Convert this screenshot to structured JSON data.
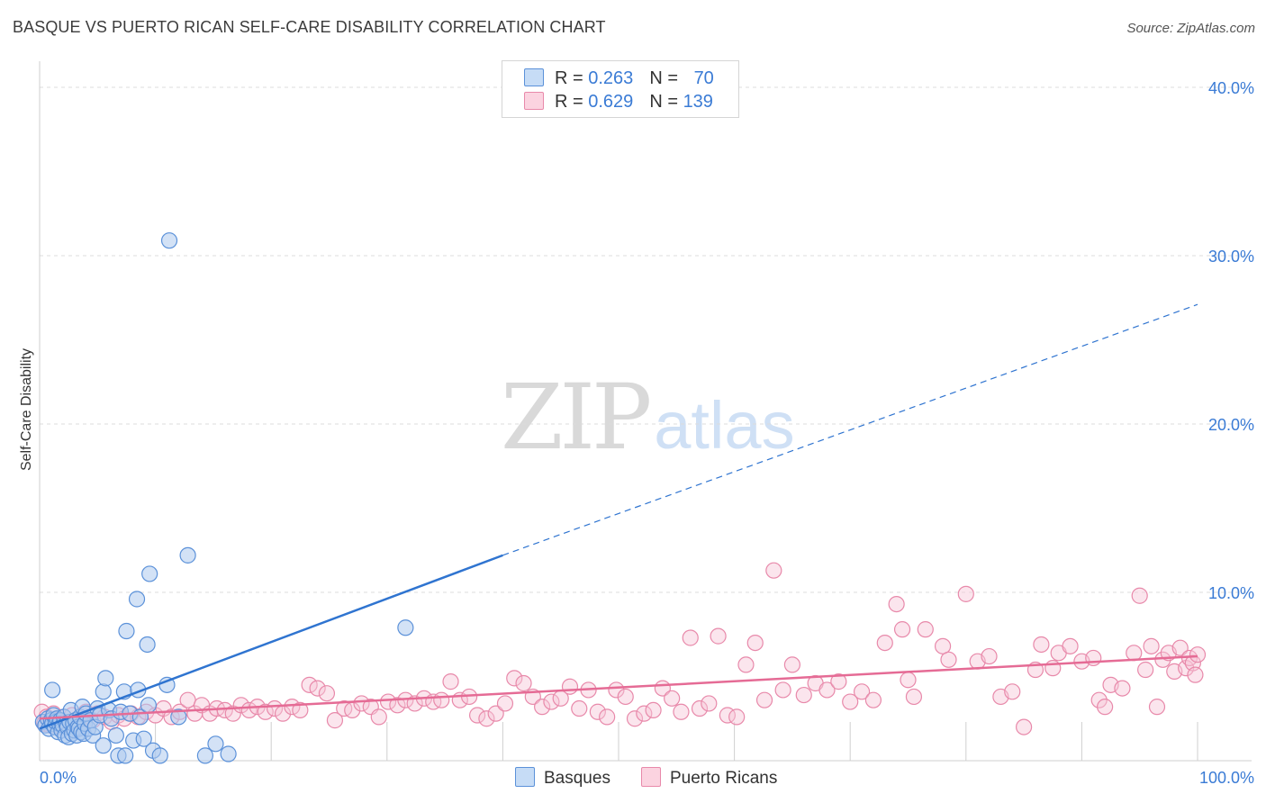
{
  "title": "BASQUE VS PUERTO RICAN SELF-CARE DISABILITY CORRELATION CHART",
  "source": "Source: ZipAtlas.com",
  "watermark": {
    "zip": "ZIP",
    "atlas": "atlas"
  },
  "legend": {
    "rows": [
      {
        "r_label": "R = ",
        "r_value": "0.263",
        "n_label": "N = ",
        "n_value": "70"
      },
      {
        "r_label": "R = ",
        "r_value": "0.629",
        "n_label": "N = ",
        "n_value": "139"
      }
    ]
  },
  "bottom_legend": {
    "basques": "Basques",
    "puerto_ricans": "Puerto Ricans"
  },
  "colors": {
    "basque_fill": "#aecbef",
    "basque_stroke": "#5b91d9",
    "basque_line": "#2f74d0",
    "pr_fill": "#f7c6d6",
    "pr_stroke": "#e889aa",
    "pr_line": "#e56b95",
    "tick_label": "#3a7bd5",
    "grid": "#dcdcdc"
  },
  "chart_data": {
    "type": "scatter",
    "title": "BASQUE VS PUERTO RICAN SELF-CARE DISABILITY CORRELATION CHART",
    "xlabel": "",
    "ylabel": "Self-Care Disability",
    "xlim": [
      0,
      100
    ],
    "ylim": [
      0,
      40
    ],
    "x_tick_labels": [
      "0.0%",
      "100.0%"
    ],
    "y_ticks": [
      10,
      20,
      30,
      40
    ],
    "y_tick_labels": [
      "10.0%",
      "20.0%",
      "30.0%",
      "40.0%"
    ],
    "series": [
      {
        "name": "Basques",
        "R": 0.263,
        "N": 70,
        "trend": {
          "x0": 0,
          "y0": 1.9,
          "x1": 40,
          "y1": 12.2,
          "dash_to_x": 100,
          "dash_to_y": 27.1
        },
        "points": [
          [
            0.3,
            2.3
          ],
          [
            0.5,
            2.1
          ],
          [
            0.7,
            2.5
          ],
          [
            0.8,
            1.9
          ],
          [
            1.0,
            2.4
          ],
          [
            1.1,
            2.2
          ],
          [
            1.2,
            2.7
          ],
          [
            1.3,
            2.0
          ],
          [
            1.4,
            2.3
          ],
          [
            1.5,
            2.5
          ],
          [
            1.6,
            1.7
          ],
          [
            1.7,
            2.2
          ],
          [
            1.8,
            2.4
          ],
          [
            1.9,
            1.8
          ],
          [
            2.0,
            2.1
          ],
          [
            2.1,
            2.6
          ],
          [
            2.2,
            1.5
          ],
          [
            2.3,
            2.2
          ],
          [
            2.4,
            2.0
          ],
          [
            2.5,
            1.4
          ],
          [
            2.6,
            2.3
          ],
          [
            2.7,
            3.0
          ],
          [
            2.8,
            1.6
          ],
          [
            2.9,
            2.2
          ],
          [
            3.0,
            1.8
          ],
          [
            3.1,
            2.4
          ],
          [
            3.2,
            1.5
          ],
          [
            3.3,
            2.0
          ],
          [
            3.4,
            1.9
          ],
          [
            3.5,
            2.6
          ],
          [
            3.6,
            1.7
          ],
          [
            3.7,
            3.2
          ],
          [
            3.8,
            1.6
          ],
          [
            3.9,
            2.2
          ],
          [
            4.0,
            2.8
          ],
          [
            4.2,
            1.9
          ],
          [
            4.4,
            2.4
          ],
          [
            4.6,
            1.5
          ],
          [
            4.8,
            2.0
          ],
          [
            5.0,
            3.1
          ],
          [
            5.2,
            2.7
          ],
          [
            5.5,
            4.1
          ],
          [
            5.7,
            4.9
          ],
          [
            6.0,
            3.0
          ],
          [
            6.2,
            2.5
          ],
          [
            6.6,
            1.5
          ],
          [
            7.0,
            2.9
          ],
          [
            7.3,
            4.1
          ],
          [
            7.8,
            2.8
          ],
          [
            8.1,
            1.2
          ],
          [
            8.5,
            4.2
          ],
          [
            8.7,
            2.6
          ],
          [
            9.0,
            1.3
          ],
          [
            9.4,
            3.3
          ],
          [
            5.5,
            0.9
          ],
          [
            6.8,
            0.3
          ],
          [
            7.4,
            0.3
          ],
          [
            9.8,
            0.6
          ],
          [
            10.4,
            0.3
          ],
          [
            11.0,
            4.5
          ],
          [
            12.0,
            2.6
          ],
          [
            14.3,
            0.3
          ],
          [
            15.2,
            1.0
          ],
          [
            16.3,
            0.4
          ],
          [
            9.3,
            6.9
          ],
          [
            9.5,
            11.1
          ],
          [
            7.5,
            7.7
          ],
          [
            8.4,
            9.6
          ],
          [
            12.8,
            12.2
          ],
          [
            11.2,
            30.9
          ],
          [
            31.6,
            7.9
          ],
          [
            1.1,
            4.2
          ]
        ]
      },
      {
        "name": "Puerto Ricans",
        "R": 0.629,
        "N": 139,
        "trend": {
          "x0": 0,
          "y0": 2.5,
          "x1": 100,
          "y1": 6.2
        },
        "points": [
          [
            0.2,
            2.9
          ],
          [
            0.4,
            2.2
          ],
          [
            0.6,
            2.6
          ],
          [
            0.9,
            2.1
          ],
          [
            1.2,
            2.8
          ],
          [
            1.5,
            2.4
          ],
          [
            1.8,
            2.0
          ],
          [
            2.1,
            2.6
          ],
          [
            2.4,
            2.3
          ],
          [
            2.8,
            2.7
          ],
          [
            3.2,
            2.1
          ],
          [
            3.6,
            2.5
          ],
          [
            4.0,
            2.9
          ],
          [
            4.6,
            2.4
          ],
          [
            5.0,
            2.8
          ],
          [
            5.6,
            2.6
          ],
          [
            6.2,
            2.3
          ],
          [
            6.8,
            2.7
          ],
          [
            7.3,
            2.5
          ],
          [
            7.9,
            2.8
          ],
          [
            8.5,
            2.6
          ],
          [
            9.2,
            2.9
          ],
          [
            10.0,
            2.7
          ],
          [
            10.7,
            3.1
          ],
          [
            11.4,
            2.6
          ],
          [
            12.1,
            2.9
          ],
          [
            12.8,
            3.6
          ],
          [
            13.4,
            2.8
          ],
          [
            14.0,
            3.3
          ],
          [
            14.7,
            2.8
          ],
          [
            15.3,
            3.1
          ],
          [
            16.0,
            3.0
          ],
          [
            16.7,
            2.8
          ],
          [
            17.4,
            3.3
          ],
          [
            18.1,
            3.0
          ],
          [
            18.8,
            3.2
          ],
          [
            19.5,
            2.9
          ],
          [
            20.3,
            3.1
          ],
          [
            21.0,
            2.8
          ],
          [
            21.8,
            3.2
          ],
          [
            22.5,
            3.0
          ],
          [
            23.3,
            4.5
          ],
          [
            24.0,
            4.3
          ],
          [
            24.8,
            4.0
          ],
          [
            25.5,
            2.4
          ],
          [
            26.3,
            3.1
          ],
          [
            27.0,
            3.0
          ],
          [
            27.8,
            3.4
          ],
          [
            28.6,
            3.2
          ],
          [
            29.3,
            2.6
          ],
          [
            30.1,
            3.5
          ],
          [
            30.9,
            3.3
          ],
          [
            31.6,
            3.6
          ],
          [
            32.4,
            3.4
          ],
          [
            33.2,
            3.7
          ],
          [
            34.0,
            3.5
          ],
          [
            34.7,
            3.6
          ],
          [
            35.5,
            4.7
          ],
          [
            36.3,
            3.6
          ],
          [
            37.1,
            3.8
          ],
          [
            37.8,
            2.7
          ],
          [
            38.6,
            2.5
          ],
          [
            39.4,
            2.8
          ],
          [
            40.2,
            3.4
          ],
          [
            41.0,
            4.9
          ],
          [
            41.8,
            4.6
          ],
          [
            42.6,
            3.8
          ],
          [
            43.4,
            3.2
          ],
          [
            44.2,
            3.5
          ],
          [
            45.0,
            3.7
          ],
          [
            45.8,
            4.4
          ],
          [
            46.6,
            3.1
          ],
          [
            47.4,
            4.2
          ],
          [
            48.2,
            2.9
          ],
          [
            49.0,
            2.6
          ],
          [
            49.8,
            4.2
          ],
          [
            50.6,
            3.8
          ],
          [
            51.4,
            2.5
          ],
          [
            52.2,
            2.8
          ],
          [
            53.0,
            3.0
          ],
          [
            53.8,
            4.3
          ],
          [
            54.6,
            3.7
          ],
          [
            55.4,
            2.9
          ],
          [
            56.2,
            7.3
          ],
          [
            57.0,
            3.1
          ],
          [
            57.8,
            3.4
          ],
          [
            58.6,
            7.4
          ],
          [
            59.4,
            2.7
          ],
          [
            60.2,
            2.6
          ],
          [
            61.0,
            5.7
          ],
          [
            61.8,
            7.0
          ],
          [
            62.6,
            3.6
          ],
          [
            63.4,
            11.3
          ],
          [
            64.2,
            4.2
          ],
          [
            65.0,
            5.7
          ],
          [
            66.0,
            3.9
          ],
          [
            67.0,
            4.6
          ],
          [
            68.0,
            4.2
          ],
          [
            69.0,
            4.7
          ],
          [
            70.0,
            3.5
          ],
          [
            71.0,
            4.1
          ],
          [
            72.0,
            3.6
          ],
          [
            73.0,
            7.0
          ],
          [
            74.0,
            9.3
          ],
          [
            74.5,
            7.8
          ],
          [
            75.0,
            4.8
          ],
          [
            75.5,
            3.8
          ],
          [
            76.5,
            7.8
          ],
          [
            78.0,
            6.8
          ],
          [
            78.5,
            6.0
          ],
          [
            80.0,
            9.9
          ],
          [
            81.0,
            5.9
          ],
          [
            82.0,
            6.2
          ],
          [
            83.0,
            3.8
          ],
          [
            84.0,
            4.1
          ],
          [
            85.0,
            2.0
          ],
          [
            86.0,
            5.4
          ],
          [
            86.5,
            6.9
          ],
          [
            87.5,
            5.5
          ],
          [
            88.0,
            6.4
          ],
          [
            89.0,
            6.8
          ],
          [
            90.0,
            5.9
          ],
          [
            91.0,
            6.1
          ],
          [
            91.5,
            3.6
          ],
          [
            92.0,
            3.2
          ],
          [
            92.5,
            4.5
          ],
          [
            93.5,
            4.3
          ],
          [
            94.5,
            6.4
          ],
          [
            95.0,
            9.8
          ],
          [
            95.5,
            5.4
          ],
          [
            96.0,
            6.8
          ],
          [
            96.5,
            3.2
          ],
          [
            97.0,
            6.0
          ],
          [
            97.5,
            6.4
          ],
          [
            98.0,
            5.3
          ],
          [
            98.5,
            6.7
          ],
          [
            99.0,
            5.5
          ],
          [
            99.3,
            6.1
          ],
          [
            99.6,
            5.8
          ],
          [
            99.8,
            5.1
          ],
          [
            100.0,
            6.3
          ]
        ]
      }
    ]
  }
}
